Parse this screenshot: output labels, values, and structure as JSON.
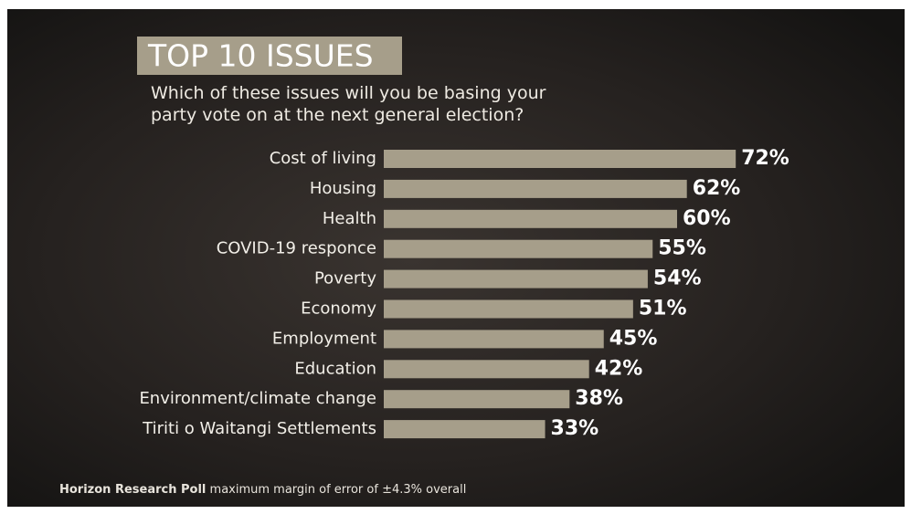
{
  "chart_data": {
    "type": "bar",
    "orientation": "horizontal",
    "title": "TOP 10 ISSUES",
    "subtitle": "Which of these issues will you be basing your party vote on at the next general election?",
    "categories": [
      "Cost of living",
      "Housing",
      "Health",
      "COVID-19 responce",
      "Poverty",
      "Economy",
      "Employment",
      "Education",
      "Environment/climate change",
      "Tiriti o Waitangi Settlements"
    ],
    "values": [
      72,
      62,
      60,
      55,
      54,
      51,
      45,
      42,
      38,
      33
    ],
    "value_labels": [
      "72%",
      "62%",
      "60%",
      "55%",
      "54%",
      "51%",
      "45%",
      "42%",
      "38%",
      "33%"
    ],
    "color": "#a69e8a",
    "source": "Horizon Research Poll",
    "note": "maximum margin of error of ±4.3% overall"
  }
}
